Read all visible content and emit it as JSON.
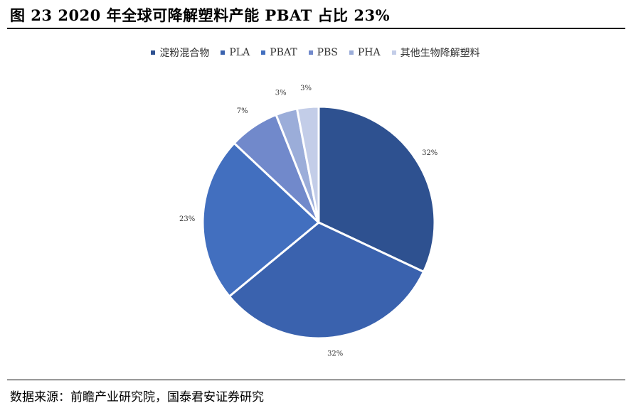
{
  "figure": {
    "title": "图  23 2020 年全球可降解塑料产能 PBAT 占比 23%",
    "source": "数据来源：前瞻产业研究院，国泰君安证券研究"
  },
  "chart_data": {
    "type": "pie",
    "title": "图  23 2020 年全球可降解塑料产能 PBAT 占比 23%",
    "legend_position": "top",
    "categories": [
      "淀粉混合物",
      "PLA",
      "PBAT",
      "PBS",
      "PHA",
      "其他生物降解塑料"
    ],
    "values": [
      32,
      32,
      23,
      7,
      3,
      3
    ],
    "labels": [
      "32%",
      "32%",
      "23%",
      "7%",
      "3%",
      "3%"
    ],
    "colors": [
      "#2e5190",
      "#3a62ae",
      "#426fbf",
      "#7189cb",
      "#9badd9",
      "#c3cde8"
    ]
  }
}
